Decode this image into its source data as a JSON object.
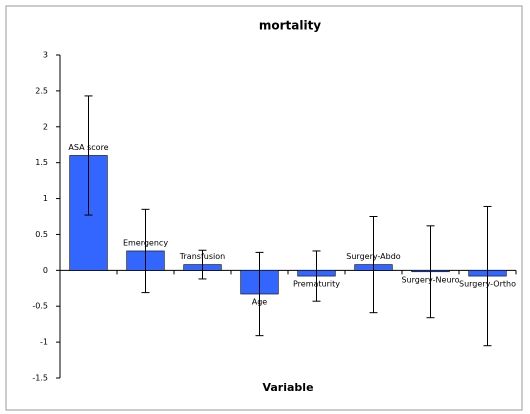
{
  "chart_data": {
    "type": "bar",
    "title": "mortality",
    "x_label": "Variable",
    "categories": [
      "ASA score",
      "Emergency",
      "Transfusion",
      "Age",
      "Prematurity",
      "Surgery-Abdo",
      "Surgery-Neuro",
      "Surgery-Ortho"
    ],
    "values": [
      1.6,
      0.27,
      0.08,
      -0.33,
      -0.08,
      0.08,
      -0.02,
      -0.08
    ],
    "errors": [
      0.83,
      0.58,
      0.2,
      0.58,
      0.35,
      0.67,
      0.64,
      0.97
    ],
    "color": "#3366ff",
    "ylim": [
      -1.5,
      3
    ],
    "yticks": [
      3,
      2.5,
      2,
      1.5,
      1,
      0.5,
      0,
      -0.5,
      -1,
      -1.5
    ]
  }
}
